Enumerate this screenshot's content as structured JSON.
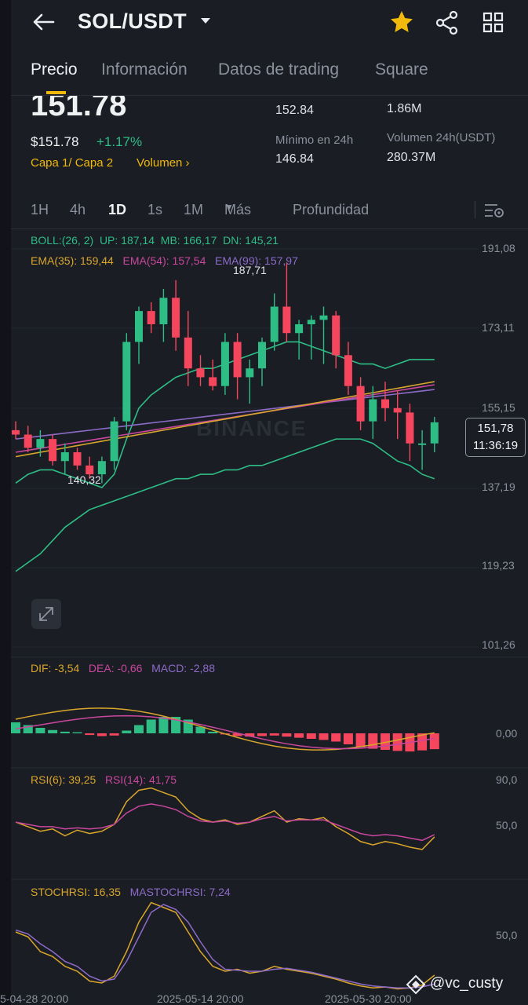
{
  "header": {
    "title": "SOL/USDT"
  },
  "tabs": [
    {
      "label": "Precio"
    },
    {
      "label": "Información"
    },
    {
      "label": "Datos de trading"
    },
    {
      "label": "Square"
    }
  ],
  "price": {
    "last": "151.78",
    "usd": "$151.78",
    "change": "+1.17%",
    "layers_link": "Capa 1/ Capa 2",
    "volume_link": "Volumen",
    "high_24h_value": "152.84",
    "vol_label_top": "1.86M",
    "low_24h_label": "Mínimo en 24h",
    "low_24h_value": "146.84",
    "vol_usdt_label": "Volumen 24h(USDT)",
    "vol_usdt_value": "280.37M"
  },
  "intervals": [
    "1H",
    "4h",
    "1D",
    "1s",
    "1M",
    "Más",
    "Profundidad"
  ],
  "indicators": {
    "boll": "BOLL:(26, 2)",
    "boll_up": "UP: 187,14",
    "boll_mb": "MB: 166,17",
    "boll_dn": "DN: 145,21",
    "ema35": "EMA(35): 159,44",
    "ema54": "EMA(54): 157,54",
    "ema99": "EMA(99): 157,97",
    "dif": "DIF: -3,54",
    "dea": "DEA: -0,66",
    "macd": "MACD: -2,88",
    "rsi6": "RSI(6): 39,25",
    "rsi14": "RSI(14): 41,75",
    "stoch": "STOCHRSI: 16,35",
    "mastoch": "MASTOCHRSI: 7,24"
  },
  "chart_labels": {
    "high_mark": "187,71",
    "low_mark": "140,32",
    "current_price": "151,78",
    "countdown": "11:36:19",
    "watermark": "BINANCE"
  },
  "y_axis_main": [
    "191,08",
    "173,11",
    "155,15",
    "137,19",
    "119,23",
    "101,26"
  ],
  "y_axis_macd": [
    "0,00"
  ],
  "y_axis_rsi": [
    "90,0",
    "50,0"
  ],
  "y_axis_stoch": [
    "50,0"
  ],
  "x_axis": [
    "5-04-28 20:00",
    "2025-05-14 20:00",
    "2025-05-30 20:00"
  ],
  "watermark_user": "@vc_custy",
  "colors": {
    "up": "#2ebd85",
    "down": "#f6465d",
    "accent": "#f0b90b",
    "bg": "#1a1d24"
  },
  "chart_data": {
    "type": "candlestick",
    "series": [
      {
        "name": "price",
        "ohlc": [
          [
            150,
            152,
            148,
            149
          ],
          [
            149,
            151,
            145,
            146
          ],
          [
            146,
            150,
            144,
            148
          ],
          [
            148,
            149,
            142,
            143
          ],
          [
            143,
            147,
            140,
            145
          ],
          [
            145,
            146,
            141,
            142
          ],
          [
            142,
            144,
            139,
            140
          ],
          [
            140,
            144,
            138,
            143
          ],
          [
            143,
            153,
            141,
            152
          ],
          [
            152,
            172,
            150,
            170
          ],
          [
            170,
            178,
            165,
            177
          ],
          [
            177,
            179,
            172,
            174
          ],
          [
            174,
            182,
            170,
            180
          ],
          [
            180,
            184,
            168,
            171
          ],
          [
            171,
            177,
            160,
            164
          ],
          [
            164,
            167,
            160,
            162
          ],
          [
            162,
            166,
            159,
            160
          ],
          [
            160,
            172,
            158,
            170
          ],
          [
            170,
            172,
            157,
            162
          ],
          [
            162,
            166,
            156,
            164
          ],
          [
            164,
            171,
            160,
            170
          ],
          [
            170,
            181,
            168,
            178
          ],
          [
            178,
            188,
            170,
            172
          ],
          [
            172,
            175,
            166,
            174
          ],
          [
            174,
            176,
            166,
            175
          ],
          [
            175,
            178,
            165,
            176
          ],
          [
            176,
            177,
            164,
            167
          ],
          [
            167,
            170,
            158,
            160
          ],
          [
            160,
            162,
            150,
            152
          ],
          [
            152,
            160,
            148,
            157
          ],
          [
            157,
            161,
            152,
            155
          ],
          [
            155,
            159,
            148,
            154
          ],
          [
            154,
            156,
            143,
            147
          ],
          [
            147,
            150,
            141,
            147
          ],
          [
            147,
            153,
            145,
            151.78
          ]
        ]
      }
    ]
  }
}
